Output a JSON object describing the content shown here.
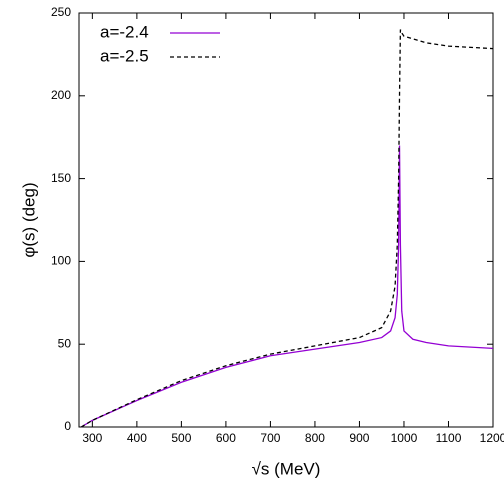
{
  "chart_data": {
    "type": "line",
    "x_label": "√s (MeV)",
    "y_label": "φ(s) (deg)",
    "xlim": [
      270,
      1200
    ],
    "ylim": [
      0,
      250
    ],
    "xticks": [
      300,
      400,
      500,
      600,
      700,
      800,
      900,
      1000,
      1100,
      1200
    ],
    "yticks": [
      0,
      50,
      100,
      150,
      200,
      250
    ],
    "legend": "upper left",
    "series": [
      {
        "name": "a=-2.4",
        "color": "#9400d3",
        "style": "solid",
        "x": [
          275,
          300,
          400,
          500,
          600,
          700,
          800,
          900,
          950,
          970,
          980,
          985,
          988,
          990,
          992,
          995,
          1000,
          1020,
          1050,
          1100,
          1200
        ],
        "values": [
          0,
          4,
          16,
          27,
          36,
          43,
          47,
          51,
          54,
          58,
          66,
          80,
          110,
          170,
          110,
          70,
          58,
          53,
          51,
          49,
          47.5
        ]
      },
      {
        "name": "a=-2.5",
        "color": "#000000",
        "style": "dashed",
        "x": [
          275,
          300,
          400,
          500,
          600,
          700,
          800,
          900,
          950,
          970,
          980,
          985,
          988,
          990,
          992,
          995,
          1000,
          1050,
          1100,
          1200
        ],
        "values": [
          0,
          4,
          16.5,
          28,
          37,
          44,
          49,
          54,
          60,
          70,
          85,
          110,
          150,
          200,
          240,
          238,
          236,
          232,
          230,
          228.5
        ]
      }
    ]
  }
}
